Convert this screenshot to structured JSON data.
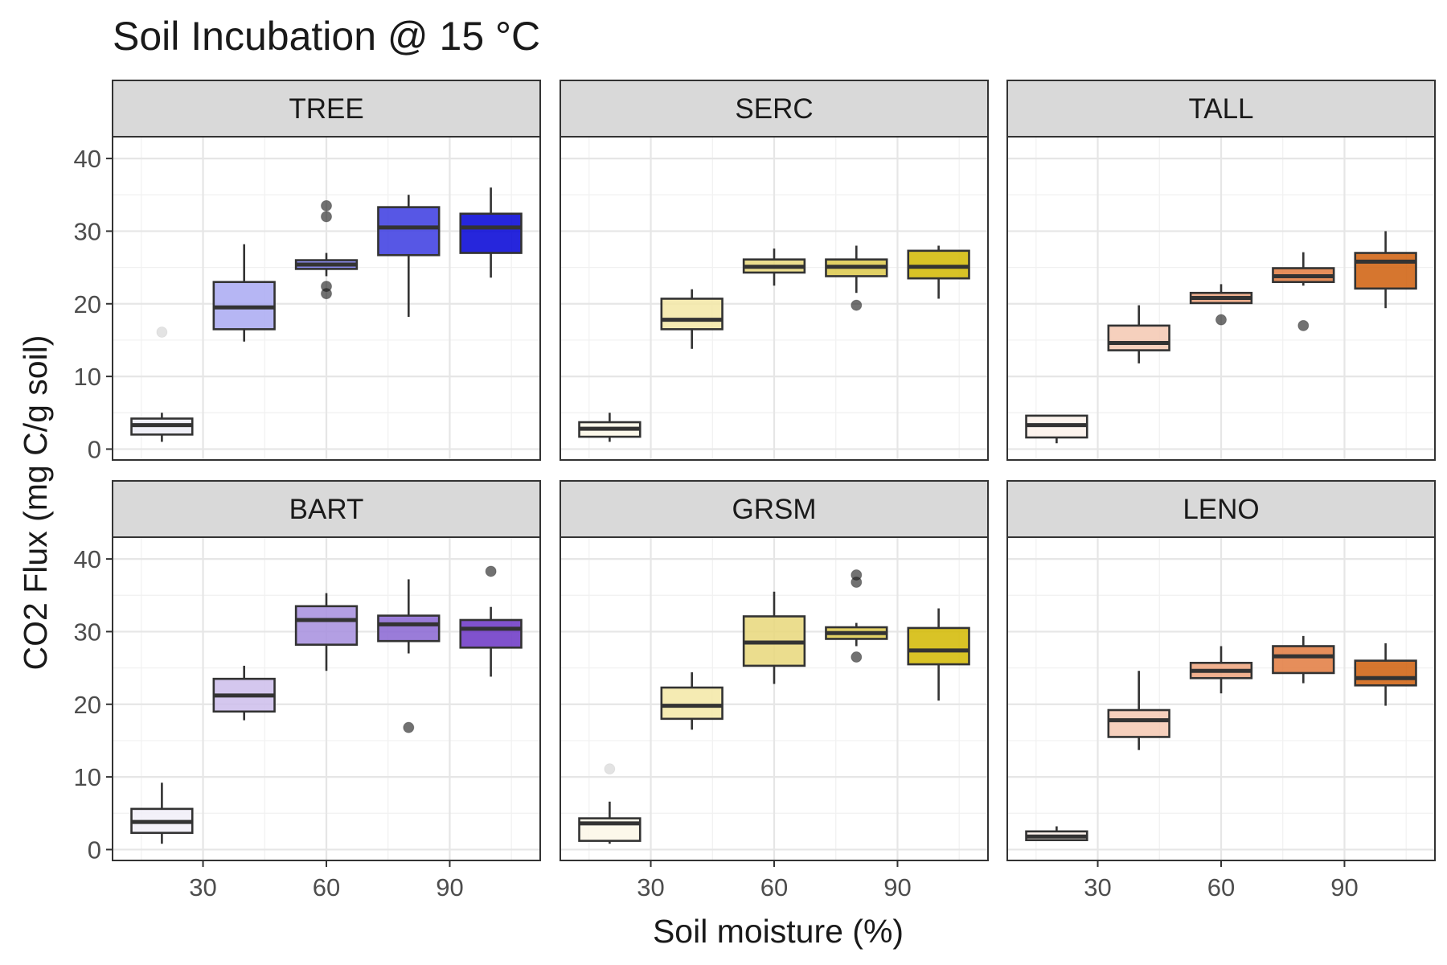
{
  "chart_data": {
    "type": "boxplot",
    "title": "Soil Incubation @ 15 °C",
    "xlabel": "Soil moisture (%)",
    "ylabel": "CO2 Flux (mg C/g soil)",
    "x_ticks": [
      30,
      60,
      90
    ],
    "y_ticks": [
      0,
      10,
      20,
      30,
      40
    ],
    "xlim": [
      8,
      112
    ],
    "ylim": [
      -1.5,
      43
    ],
    "grid": true,
    "moisture_levels": [
      20,
      40,
      60,
      80,
      100
    ],
    "panels": [
      {
        "site": "TREE",
        "colors": [
          "#ececf6",
          "#a9a9f2",
          "#7474e8",
          "#3a3ae0",
          "#0000d6"
        ],
        "boxes": [
          {
            "x": 20,
            "min": 1.0,
            "q1": 2.0,
            "median": 3.3,
            "q3": 4.2,
            "max": 5.0,
            "outliers": [
              16.1
            ]
          },
          {
            "x": 40,
            "min": 14.8,
            "q1": 16.5,
            "median": 19.5,
            "q3": 23.0,
            "max": 28.2,
            "outliers": []
          },
          {
            "x": 60,
            "min": 23.8,
            "q1": 24.8,
            "median": 25.4,
            "q3": 26.0,
            "max": 27.0,
            "outliers": [
              33.5,
              32.0,
              22.4,
              21.4
            ]
          },
          {
            "x": 80,
            "min": 18.2,
            "q1": 26.7,
            "median": 30.5,
            "q3": 33.3,
            "max": 35.0,
            "outliers": []
          },
          {
            "x": 100,
            "min": 23.6,
            "q1": 27.0,
            "median": 30.5,
            "q3": 32.4,
            "max": 36.0,
            "outliers": []
          }
        ]
      },
      {
        "site": "SERC",
        "colors": [
          "#fbf7e6",
          "#f3e7a6",
          "#e8d77a",
          "#ddc94a",
          "#d2b800"
        ],
        "boxes": [
          {
            "x": 20,
            "min": 1.0,
            "q1": 1.7,
            "median": 2.8,
            "q3": 3.7,
            "max": 5.0,
            "outliers": []
          },
          {
            "x": 40,
            "min": 13.8,
            "q1": 16.5,
            "median": 17.8,
            "q3": 20.7,
            "max": 22.0,
            "outliers": []
          },
          {
            "x": 60,
            "min": 22.5,
            "q1": 24.3,
            "median": 25.1,
            "q3": 26.1,
            "max": 27.6,
            "outliers": []
          },
          {
            "x": 80,
            "min": 21.5,
            "q1": 23.8,
            "median": 25.1,
            "q3": 26.1,
            "max": 28.0,
            "outliers": [
              19.8
            ]
          },
          {
            "x": 100,
            "min": 20.7,
            "q1": 23.5,
            "median": 25.1,
            "q3": 27.3,
            "max": 28.0,
            "outliers": []
          }
        ]
      },
      {
        "site": "TALL",
        "colors": [
          "#fbf1ea",
          "#f4c8b2",
          "#eda37c",
          "#e27a3e",
          "#cf5e0a"
        ],
        "boxes": [
          {
            "x": 20,
            "min": 0.8,
            "q1": 1.6,
            "median": 3.3,
            "q3": 4.6,
            "max": 4.6,
            "outliers": []
          },
          {
            "x": 40,
            "min": 11.8,
            "q1": 13.6,
            "median": 14.6,
            "q3": 17.0,
            "max": 19.8,
            "outliers": []
          },
          {
            "x": 60,
            "min": 20.0,
            "q1": 20.1,
            "median": 20.8,
            "q3": 21.5,
            "max": 22.7,
            "outliers": [
              17.8
            ]
          },
          {
            "x": 80,
            "min": 22.5,
            "q1": 23.0,
            "median": 23.8,
            "q3": 24.9,
            "max": 27.1,
            "outliers": [
              17.0
            ]
          },
          {
            "x": 100,
            "min": 19.4,
            "q1": 22.1,
            "median": 25.8,
            "q3": 27.0,
            "max": 30.0,
            "outliers": []
          }
        ]
      },
      {
        "site": "BART",
        "colors": [
          "#f1eef8",
          "#cdbdeb",
          "#a68ede",
          "#8865d2",
          "#6a34c4"
        ],
        "boxes": [
          {
            "x": 20,
            "min": 0.8,
            "q1": 2.3,
            "median": 3.8,
            "q3": 5.6,
            "max": 9.2,
            "outliers": []
          },
          {
            "x": 40,
            "min": 17.8,
            "q1": 19.0,
            "median": 21.2,
            "q3": 23.5,
            "max": 25.3,
            "outliers": []
          },
          {
            "x": 60,
            "min": 24.6,
            "q1": 28.2,
            "median": 31.6,
            "q3": 33.5,
            "max": 35.3,
            "outliers": []
          },
          {
            "x": 80,
            "min": 27.0,
            "q1": 28.7,
            "median": 31.0,
            "q3": 32.2,
            "max": 37.2,
            "outliers": [
              16.8
            ]
          },
          {
            "x": 100,
            "min": 23.8,
            "q1": 27.8,
            "median": 30.4,
            "q3": 31.6,
            "max": 33.4,
            "outliers": [
              38.3
            ]
          }
        ]
      },
      {
        "site": "GRSM",
        "colors": [
          "#fbf7e6",
          "#f3e7a6",
          "#e8d77a",
          "#ddc94a",
          "#d2b800"
        ],
        "boxes": [
          {
            "x": 20,
            "min": 0.8,
            "q1": 1.2,
            "median": 3.6,
            "q3": 4.3,
            "max": 6.6,
            "outliers": [
              11.1
            ]
          },
          {
            "x": 40,
            "min": 16.5,
            "q1": 18.0,
            "median": 19.8,
            "q3": 22.3,
            "max": 24.4,
            "outliers": []
          },
          {
            "x": 60,
            "min": 22.8,
            "q1": 25.3,
            "median": 28.5,
            "q3": 32.1,
            "max": 35.5,
            "outliers": []
          },
          {
            "x": 80,
            "min": 28.0,
            "q1": 29.0,
            "median": 29.8,
            "q3": 30.6,
            "max": 31.2,
            "outliers": [
              37.8,
              36.8,
              26.5
            ]
          },
          {
            "x": 100,
            "min": 20.5,
            "q1": 25.5,
            "median": 27.4,
            "q3": 30.5,
            "max": 33.2,
            "outliers": []
          }
        ]
      },
      {
        "site": "LENO",
        "colors": [
          "#fbf1ea",
          "#f4c8b2",
          "#eda37c",
          "#e27a3e",
          "#cf5e0a"
        ],
        "boxes": [
          {
            "x": 20,
            "min": 1.2,
            "q1": 1.3,
            "median": 1.8,
            "q3": 2.5,
            "max": 3.2,
            "outliers": []
          },
          {
            "x": 40,
            "min": 13.7,
            "q1": 15.5,
            "median": 17.8,
            "q3": 19.2,
            "max": 24.6,
            "outliers": []
          },
          {
            "x": 60,
            "min": 21.5,
            "q1": 23.6,
            "median": 24.6,
            "q3": 25.7,
            "max": 28.0,
            "outliers": []
          },
          {
            "x": 80,
            "min": 22.9,
            "q1": 24.3,
            "median": 26.6,
            "q3": 28.0,
            "max": 29.4,
            "outliers": []
          },
          {
            "x": 100,
            "min": 19.8,
            "q1": 22.6,
            "median": 23.6,
            "q3": 26.0,
            "max": 28.4,
            "outliers": []
          }
        ]
      }
    ]
  }
}
